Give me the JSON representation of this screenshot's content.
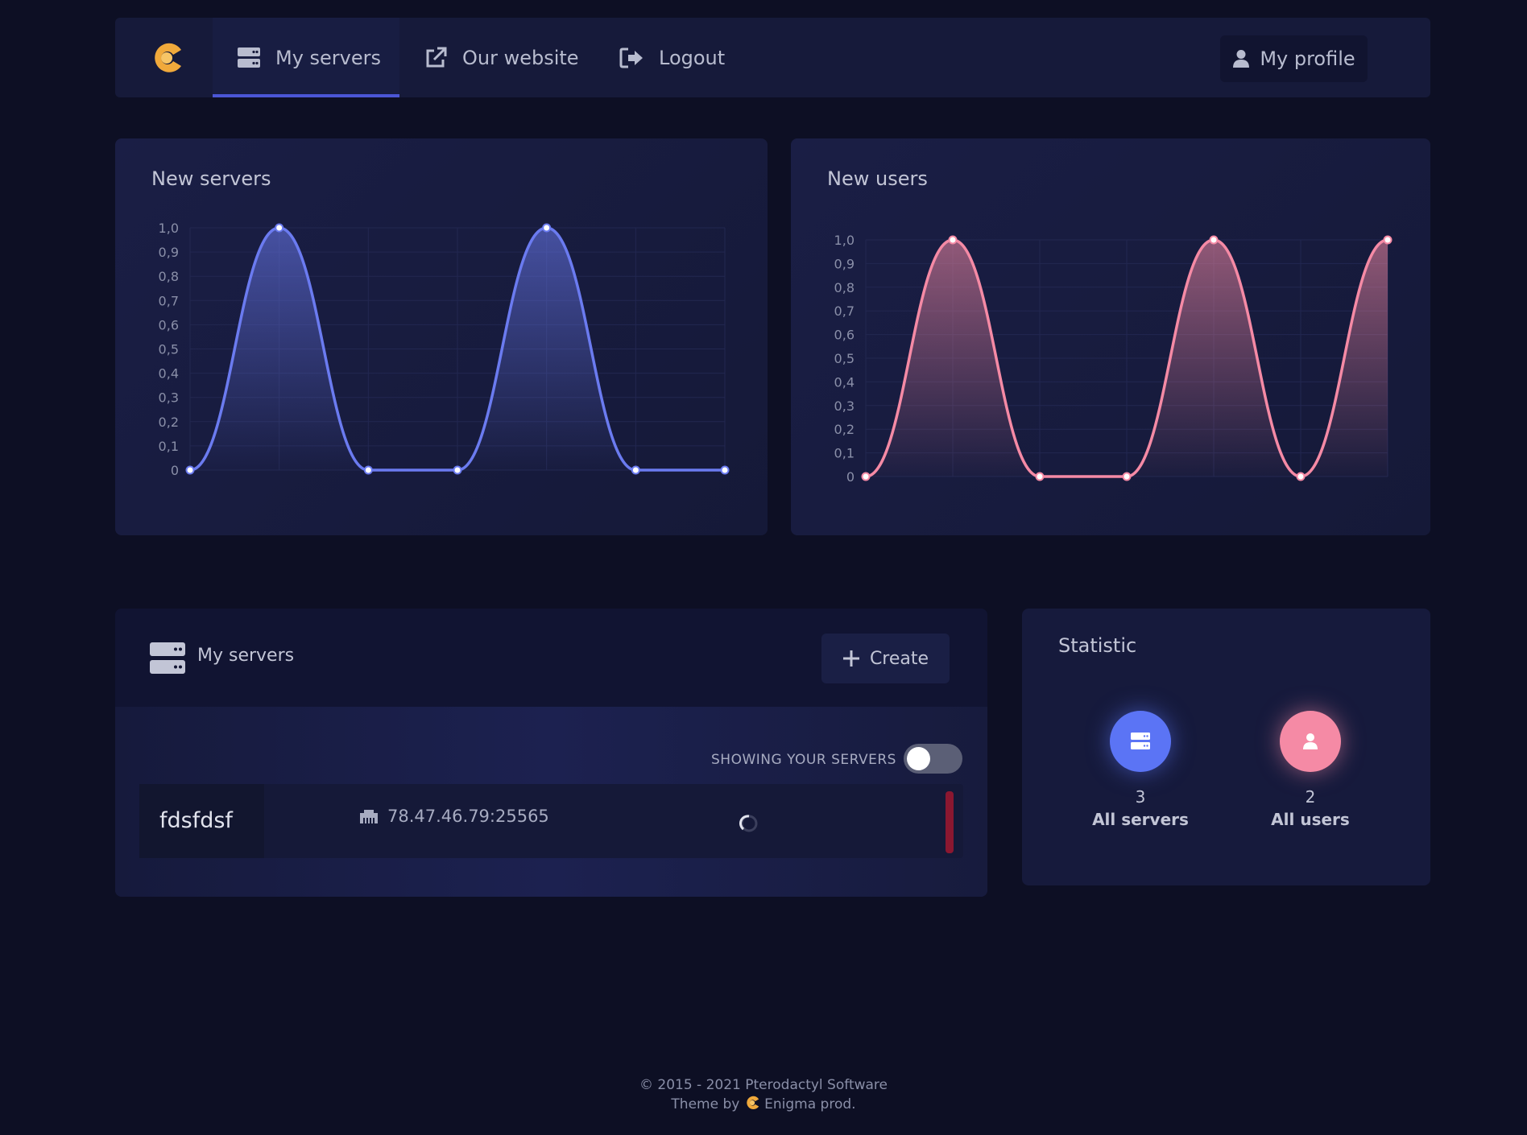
{
  "nav": {
    "items": [
      {
        "label": "My servers",
        "icon": "server-icon"
      },
      {
        "label": "Our website",
        "icon": "external-link-icon"
      },
      {
        "label": "Logout",
        "icon": "logout-icon"
      }
    ],
    "profile_label": "My profile",
    "logo_color": "#f0a93b"
  },
  "charts": {
    "servers_title": "New servers",
    "users_title": "New users"
  },
  "chart_data": [
    {
      "type": "area",
      "title": "New servers",
      "x": [
        0,
        1,
        2,
        3,
        4,
        5,
        6
      ],
      "values": [
        0,
        1,
        0,
        0,
        1,
        0,
        0
      ],
      "ylim": [
        0,
        1
      ],
      "yticks": [
        "0",
        "0,1",
        "0,2",
        "0,3",
        "0,4",
        "0,5",
        "0,6",
        "0,7",
        "0,8",
        "0,9",
        "1,0"
      ],
      "color": "#6b7bf0",
      "grid": true
    },
    {
      "type": "area",
      "title": "New users",
      "x": [
        0,
        1,
        2,
        3,
        4,
        5,
        6
      ],
      "values": [
        0,
        1,
        0,
        0,
        1,
        0,
        1
      ],
      "ylim": [
        0,
        1
      ],
      "yticks": [
        "0",
        "0,1",
        "0,2",
        "0,3",
        "0,4",
        "0,5",
        "0,6",
        "0,7",
        "0,8",
        "0,9",
        "1,0"
      ],
      "color": "#f58aa5",
      "grid": true
    }
  ],
  "servers": {
    "title": "My servers",
    "create_label": "Create",
    "toggle_label": "SHOWING YOUR SERVERS",
    "toggle_on": false,
    "list": [
      {
        "name": "fdsfdsf",
        "address": "78.47.46.79:25565",
        "status_color": "#8b1730"
      }
    ]
  },
  "statistic": {
    "title": "Statistic",
    "items": [
      {
        "count": "3",
        "label": "All servers",
        "color": "#5b74f5",
        "icon": "server-icon"
      },
      {
        "count": "2",
        "label": "All users",
        "color": "#f58aa5",
        "icon": "user-icon"
      }
    ]
  },
  "footer": {
    "copyright": "© 2015 - 2021 Pterodactyl Software",
    "theme_prefix": "Theme by",
    "theme_author": "Enigma prod."
  }
}
